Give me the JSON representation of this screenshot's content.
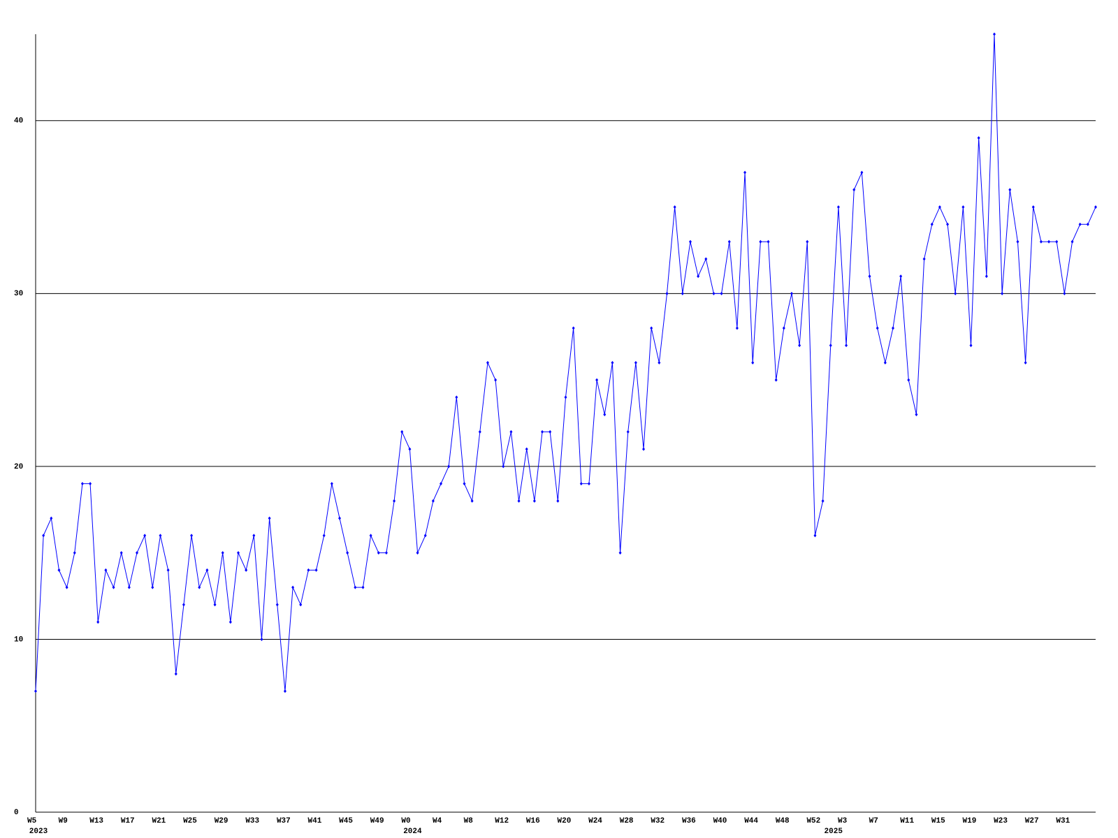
{
  "chart_data": {
    "type": "line",
    "color": "#0000ff",
    "categories": [
      "W5",
      null,
      null,
      null,
      "W9",
      null,
      null,
      null,
      "W13",
      null,
      null,
      null,
      "W17",
      null,
      null,
      null,
      "W21",
      null,
      null,
      null,
      "W25",
      null,
      null,
      null,
      "W29",
      null,
      null,
      null,
      "W33",
      null,
      null,
      null,
      "W37",
      null,
      null,
      null,
      "W41",
      null,
      null,
      null,
      "W45",
      null,
      null,
      null,
      "W49",
      null,
      null,
      null,
      "W0",
      null,
      null,
      null,
      "W4",
      null,
      null,
      null,
      "W8",
      null,
      null,
      null,
      "W12",
      null,
      null,
      null,
      "W16",
      null,
      null,
      null,
      "W20",
      null,
      null,
      null,
      "W24",
      null,
      null,
      null,
      "W28",
      null,
      null,
      null,
      "W32",
      null,
      null,
      null,
      "W36",
      null,
      null,
      null,
      "W40",
      null,
      null,
      null,
      "W44",
      null,
      null,
      null,
      "W48",
      null,
      null,
      null,
      "W52",
      null,
      null,
      null,
      "W3",
      null,
      null,
      null,
      "W7",
      null,
      null,
      null,
      "W11",
      null,
      null,
      null,
      "W15",
      null,
      null,
      null,
      "W19",
      null,
      null,
      null,
      "W23",
      null,
      null,
      null,
      "W27",
      null,
      null,
      null,
      "W31",
      null,
      null,
      null,
      null
    ],
    "year_labels": [
      "2023",
      null,
      null,
      null,
      null,
      null,
      null,
      null,
      null,
      null,
      null,
      null,
      null,
      null,
      null,
      null,
      null,
      null,
      null,
      null,
      null,
      null,
      null,
      null,
      null,
      null,
      null,
      null,
      null,
      null,
      null,
      null,
      null,
      null,
      null,
      null,
      null,
      null,
      null,
      null,
      null,
      null,
      null,
      null,
      null,
      null,
      null,
      null,
      "2024",
      null,
      null,
      null,
      null,
      null,
      null,
      null,
      null,
      null,
      null,
      null,
      null,
      null,
      null,
      null,
      null,
      null,
      null,
      null,
      null,
      null,
      null,
      null,
      null,
      null,
      null,
      null,
      null,
      null,
      null,
      null,
      null,
      null,
      null,
      null,
      null,
      null,
      null,
      null,
      null,
      null,
      null,
      null,
      null,
      null,
      null,
      null,
      null,
      null,
      null,
      null,
      null,
      null,
      "2025",
      null,
      null,
      null,
      null,
      null,
      null,
      null,
      null,
      null,
      null,
      null,
      null,
      null,
      null,
      null,
      null,
      null,
      null,
      null,
      null,
      null,
      null,
      null,
      null,
      null,
      null,
      null,
      null,
      null,
      null,
      null,
      null,
      null,
      null,
      null
    ],
    "values": [
      7,
      16,
      17,
      14,
      13,
      15,
      19,
      19,
      11,
      14,
      13,
      15,
      13,
      15,
      16,
      13,
      16,
      14,
      8,
      12,
      16,
      13,
      14,
      12,
      15,
      11,
      15,
      14,
      16,
      10,
      17,
      12,
      7,
      13,
      12,
      14,
      14,
      16,
      19,
      17,
      15,
      13,
      13,
      16,
      15,
      15,
      18,
      22,
      21,
      15,
      16,
      18,
      19,
      20,
      24,
      19,
      18,
      22,
      26,
      25,
      20,
      22,
      18,
      21,
      18,
      22,
      22,
      18,
      24,
      28,
      19,
      19,
      25,
      23,
      26,
      15,
      22,
      26,
      21,
      28,
      26,
      30,
      35,
      30,
      33,
      31,
      32,
      30,
      30,
      33,
      28,
      37,
      26,
      33,
      33,
      25,
      28,
      30,
      27,
      33,
      16,
      18,
      27,
      35,
      27,
      36,
      37,
      31,
      28,
      26,
      28,
      31,
      25,
      23,
      32,
      34,
      35,
      34,
      30,
      35,
      27,
      39,
      31,
      45,
      30,
      36,
      33,
      26,
      35,
      33,
      33,
      33,
      30,
      33,
      34,
      34,
      35
    ],
    "ylim": [
      0,
      45
    ],
    "yticks": [
      0,
      10,
      20,
      30,
      40
    ],
    "grid": true
  }
}
